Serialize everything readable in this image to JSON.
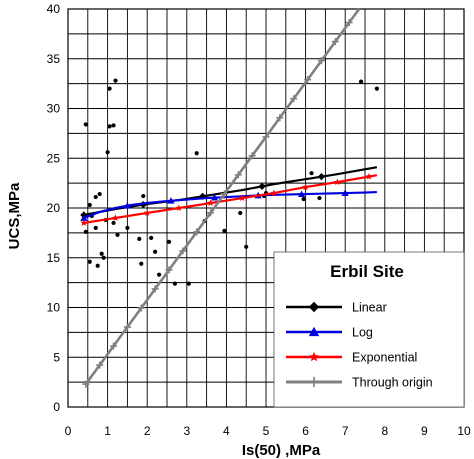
{
  "chart_data": {
    "type": "scatter",
    "xlabel": "Is(50) ,MPa",
    "ylabel": "UCS,MPa",
    "xlim": [
      0,
      10
    ],
    "ylim": [
      0,
      40
    ],
    "x_ticks": [
      0,
      1,
      2,
      3,
      4,
      5,
      6,
      7,
      8,
      9,
      10
    ],
    "y_ticks": [
      0,
      5,
      10,
      15,
      20,
      25,
      30,
      35,
      40
    ],
    "x_tick_labels": [
      "0",
      "1",
      "2",
      "3",
      "4",
      "5",
      "6",
      "7",
      "8",
      "9",
      "10"
    ],
    "y_tick_labels": [
      "0",
      "5",
      "10",
      "15",
      "20",
      "25",
      "30",
      "35",
      "40"
    ],
    "grid": true,
    "legend_position": "lower-right",
    "legend_title": "Erbil Site",
    "points": {
      "color": "#000000",
      "x": [
        0.45,
        0.45,
        0.55,
        0.55,
        0.6,
        0.7,
        0.7,
        0.75,
        0.8,
        0.85,
        0.9,
        0.95,
        1.0,
        1.05,
        1.05,
        1.15,
        1.15,
        1.2,
        1.25,
        1.5,
        1.8,
        1.85,
        1.9,
        2.1,
        2.2,
        2.3,
        2.55,
        2.7,
        3.05,
        3.25,
        3.45,
        3.95,
        4.35,
        4.5,
        4.95,
        5.0,
        5.95,
        6.15,
        6.35,
        7.4,
        7.8
      ],
      "y": [
        17.6,
        28.4,
        14.6,
        20.3,
        19.2,
        18.0,
        21.1,
        14.2,
        21.4,
        15.4,
        15.0,
        18.8,
        25.6,
        28.2,
        32.0,
        18.5,
        28.3,
        32.8,
        17.3,
        18.0,
        16.9,
        14.4,
        21.2,
        17.0,
        15.6,
        13.3,
        16.6,
        12.4,
        12.4,
        25.5,
        18.7,
        17.7,
        19.5,
        16.1,
        21.2,
        21.5,
        20.9,
        23.5,
        21.0,
        32.7,
        32.0
      ]
    },
    "series": [
      {
        "name": "Linear",
        "color": "#000000",
        "marker": "diamond",
        "x": [
          0.4,
          1.2,
          2.0,
          2.8,
          3.6,
          4.4,
          5.2,
          6.0,
          6.8,
          7.8
        ],
        "y": [
          19.3,
          19.9,
          20.4,
          20.8,
          21.3,
          21.8,
          22.4,
          22.9,
          23.4,
          24.1
        ],
        "marker_x": [
          0.4,
          1.9,
          3.4,
          4.9,
          6.4
        ]
      },
      {
        "name": "Log",
        "color": "#0000dd",
        "marker": "triangle",
        "x": [
          0.4,
          0.8,
          1.2,
          1.6,
          2.0,
          2.5,
          3.0,
          3.5,
          4.0,
          4.5,
          5.0,
          5.5,
          6.0,
          6.5,
          7.0,
          7.5,
          7.8
        ],
        "y": [
          19.0,
          19.6,
          20.0,
          20.3,
          20.5,
          20.7,
          20.85,
          21.0,
          21.1,
          21.2,
          21.3,
          21.35,
          21.4,
          21.45,
          21.5,
          21.55,
          21.6
        ],
        "marker_x": [
          0.4,
          1.5,
          2.6,
          3.7,
          4.8,
          5.9,
          7.0
        ]
      },
      {
        "name": "Exponential",
        "color": "#ff0000",
        "marker": "star",
        "x": [
          0.4,
          1.2,
          2.0,
          2.8,
          3.6,
          4.4,
          5.2,
          6.0,
          6.8,
          7.8
        ],
        "y": [
          18.5,
          19.0,
          19.5,
          20.0,
          20.5,
          21.0,
          21.5,
          22.1,
          22.6,
          23.3
        ],
        "marker_x": [
          0.4,
          1.2,
          2.0,
          2.8,
          3.6,
          4.4,
          5.2,
          6.0,
          6.8,
          7.6
        ]
      },
      {
        "name": "Through origin",
        "color": "#808080",
        "marker": "cross",
        "x": [
          0.45,
          7.35
        ],
        "y": [
          2.3,
          40.0
        ],
        "marker_x": [
          0.45,
          0.8,
          1.15,
          1.5,
          1.85,
          2.2,
          2.55,
          2.9,
          3.25,
          3.6,
          3.95,
          4.3,
          4.65,
          5.0,
          5.35,
          5.7,
          6.05,
          6.4,
          6.75,
          7.1
        ]
      }
    ]
  }
}
